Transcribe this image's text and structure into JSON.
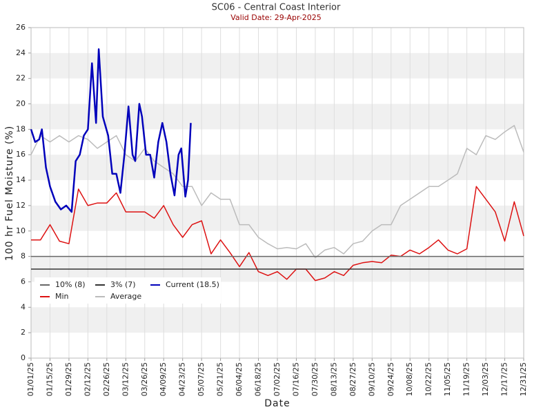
{
  "chart_data": {
    "type": "line",
    "title": "SC06 - Central Coast Interior",
    "subtitle": "Valid Date: 29-Apr-2025",
    "x_label": "Date",
    "y_label": "100 hr Fuel Moisture (%)",
    "xlim": [
      "2025-01-01",
      "2025-12-31"
    ],
    "ylim": [
      0,
      26
    ],
    "yticks": [
      0,
      2,
      4,
      6,
      8,
      10,
      12,
      14,
      16,
      18,
      20,
      22,
      24,
      26
    ],
    "xticks": [
      {
        "value": "2025-01-01",
        "label": "01/01/25"
      },
      {
        "value": "2025-01-15",
        "label": "01/15/25"
      },
      {
        "value": "2025-01-29",
        "label": "01/29/25"
      },
      {
        "value": "2025-02-12",
        "label": "02/12/25"
      },
      {
        "value": "2025-02-26",
        "label": "02/26/25"
      },
      {
        "value": "2025-03-12",
        "label": "03/12/25"
      },
      {
        "value": "2025-03-26",
        "label": "03/26/25"
      },
      {
        "value": "2025-04-09",
        "label": "04/09/25"
      },
      {
        "value": "2025-04-23",
        "label": "04/23/25"
      },
      {
        "value": "2025-05-07",
        "label": "05/07/25"
      },
      {
        "value": "2025-05-21",
        "label": "05/21/25"
      },
      {
        "value": "2025-06-04",
        "label": "06/04/25"
      },
      {
        "value": "2025-06-18",
        "label": "06/18/25"
      },
      {
        "value": "2025-07-02",
        "label": "07/02/25"
      },
      {
        "value": "2025-07-16",
        "label": "07/16/25"
      },
      {
        "value": "2025-07-30",
        "label": "07/30/25"
      },
      {
        "value": "2025-08-13",
        "label": "08/13/25"
      },
      {
        "value": "2025-08-27",
        "label": "08/27/25"
      },
      {
        "value": "2025-09-10",
        "label": "09/10/25"
      },
      {
        "value": "2025-09-24",
        "label": "09/24/25"
      },
      {
        "value": "2025-10-08",
        "label": "10/08/25"
      },
      {
        "value": "2025-10-22",
        "label": "10/22/25"
      },
      {
        "value": "2025-11-05",
        "label": "11/05/25"
      },
      {
        "value": "2025-11-19",
        "label": "11/19/25"
      },
      {
        "value": "2025-12-03",
        "label": "12/03/25"
      },
      {
        "value": "2025-12-17",
        "label": "12/17/25"
      },
      {
        "value": "2025-12-31",
        "label": "12/31/25"
      }
    ],
    "grid": true,
    "legend_position": "lower-left",
    "reference_lines": [
      {
        "name": "10% (8)",
        "value": 8,
        "color": "#666666"
      },
      {
        "name": "3% (7)",
        "value": 7,
        "color": "#333333"
      }
    ],
    "x": [
      "2025-01-01",
      "2025-01-08",
      "2025-01-15",
      "2025-01-22",
      "2025-01-29",
      "2025-02-05",
      "2025-02-12",
      "2025-02-19",
      "2025-02-26",
      "2025-03-05",
      "2025-03-12",
      "2025-03-19",
      "2025-03-26",
      "2025-04-02",
      "2025-04-09",
      "2025-04-16",
      "2025-04-23",
      "2025-04-30",
      "2025-05-07",
      "2025-05-14",
      "2025-05-21",
      "2025-05-28",
      "2025-06-04",
      "2025-06-11",
      "2025-06-18",
      "2025-06-25",
      "2025-07-02",
      "2025-07-09",
      "2025-07-16",
      "2025-07-23",
      "2025-07-30",
      "2025-08-06",
      "2025-08-13",
      "2025-08-20",
      "2025-08-27",
      "2025-09-03",
      "2025-09-10",
      "2025-09-17",
      "2025-09-24",
      "2025-10-01",
      "2025-10-08",
      "2025-10-15",
      "2025-10-22",
      "2025-10-29",
      "2025-11-05",
      "2025-11-12",
      "2025-11-19",
      "2025-11-26",
      "2025-12-03",
      "2025-12-10",
      "2025-12-17",
      "2025-12-24",
      "2025-12-31"
    ],
    "series": [
      {
        "name": "Current (18.5)",
        "color": "#0000bb",
        "x": [
          "2025-01-01",
          "2025-01-04",
          "2025-01-07",
          "2025-01-09",
          "2025-01-12",
          "2025-01-15",
          "2025-01-19",
          "2025-01-23",
          "2025-01-27",
          "2025-01-31",
          "2025-02-03",
          "2025-02-06",
          "2025-02-09",
          "2025-02-12",
          "2025-02-15",
          "2025-02-18",
          "2025-02-20",
          "2025-02-23",
          "2025-02-27",
          "2025-03-02",
          "2025-03-05",
          "2025-03-08",
          "2025-03-11",
          "2025-03-14",
          "2025-03-17",
          "2025-03-19",
          "2025-03-22",
          "2025-03-24",
          "2025-03-27",
          "2025-03-30",
          "2025-04-02",
          "2025-04-05",
          "2025-04-08",
          "2025-04-11",
          "2025-04-14",
          "2025-04-17",
          "2025-04-20",
          "2025-04-22",
          "2025-04-25",
          "2025-04-27",
          "2025-04-29"
        ],
        "values": [
          18,
          17,
          17.2,
          18,
          15,
          13.5,
          12.3,
          11.7,
          12,
          11.5,
          15.5,
          16,
          17.5,
          18,
          23.2,
          18.5,
          24.3,
          19,
          17.5,
          14.5,
          14.5,
          13,
          16,
          19.8,
          16,
          15.5,
          20,
          19,
          16,
          16,
          14.2,
          17,
          18.5,
          17,
          14.5,
          12.8,
          16,
          16.5,
          12.7,
          14,
          18.5
        ]
      },
      {
        "name": "Min",
        "color": "#dd1111",
        "values": [
          9.3,
          9.3,
          10.5,
          9.2,
          9,
          13.3,
          12,
          12.2,
          12.2,
          13,
          11.5,
          11.5,
          11.5,
          11,
          12,
          10.5,
          9.5,
          10.5,
          10.8,
          8.2,
          9.3,
          8.3,
          7.2,
          8.3,
          6.8,
          6.5,
          6.8,
          6.2,
          7,
          7,
          6.1,
          6.3,
          6.8,
          6.5,
          7.3,
          7.5,
          7.6,
          7.5,
          8.1,
          8,
          8.5,
          8.2,
          8.7,
          9.3,
          8.5,
          8.2,
          8.6,
          13.5,
          12.5,
          11.5,
          9.2,
          12.3,
          9.6
        ]
      },
      {
        "name": "Average",
        "color": "#bbbbbb",
        "values": [
          16,
          17.5,
          17,
          17.5,
          17,
          17.5,
          17.2,
          16.5,
          17,
          17.5,
          16,
          15.5,
          16.5,
          15.5,
          15,
          14.5,
          13.5,
          13.5,
          12,
          13,
          12.5,
          12.5,
          10.5,
          10.5,
          9.5,
          9,
          8.6,
          8.7,
          8.6,
          9,
          7.9,
          8.5,
          8.7,
          8.2,
          9,
          9.2,
          10,
          10.5,
          10.5,
          12,
          12.5,
          13,
          13.5,
          13.5,
          14,
          14.5,
          16.5,
          16,
          17.5,
          17.2,
          17.8,
          18.3,
          16.2
        ]
      }
    ]
  }
}
